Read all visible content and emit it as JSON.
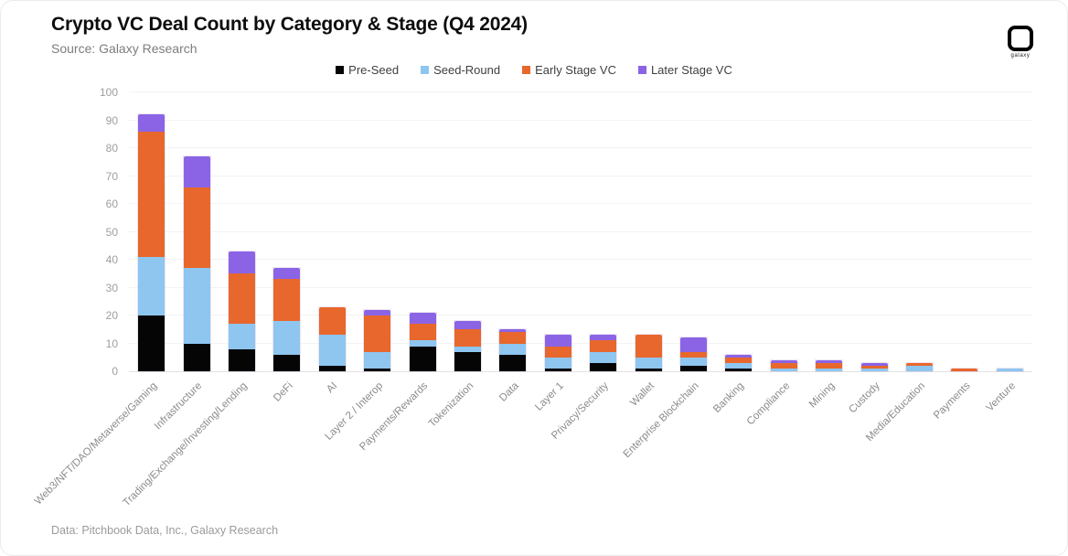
{
  "header": {
    "title": "Crypto VC Deal Count by Category & Stage (Q4 2024)",
    "source": "Source: Galaxy Research",
    "logo_text": "galaxy"
  },
  "footer": {
    "credit": "Data: Pitchbook Data, Inc., Galaxy Research"
  },
  "colors": {
    "pre_seed": "#050505",
    "seed_round": "#8EC6F0",
    "early_stage": "#E8672C",
    "later_stage": "#8B64E6"
  },
  "chart_data": {
    "type": "bar",
    "stacked": true,
    "title": "Crypto VC Deal Count by Category & Stage (Q4 2024)",
    "xlabel": "",
    "ylabel": "",
    "ylim": [
      0,
      100
    ],
    "grid": true,
    "legend_position": "top",
    "y_axis": {
      "min": 0,
      "max": 100,
      "tick_step": 10,
      "ticks": [
        0,
        10,
        20,
        30,
        40,
        50,
        60,
        70,
        80,
        90,
        100
      ]
    },
    "categories": [
      "Web3/NFT/DAO/Metaverse/Gaming",
      "Infrastructure",
      "Trading/Exchange/Investing/Lending",
      "DeFi",
      "AI",
      "Layer 2 / Interop",
      "Payments/Rewards",
      "Tokenization",
      "Data",
      "Layer 1",
      "Privacy/Security",
      "Wallet",
      "Enterprise Blockchain",
      "Banking",
      "Compliance",
      "Mining",
      "Custody",
      "Media/Education",
      "Payments",
      "Venture"
    ],
    "series": [
      {
        "name": "Pre-Seed",
        "color": "#050505",
        "values": [
          20,
          10,
          8,
          6,
          2,
          1,
          9,
          7,
          6,
          1,
          3,
          1,
          2,
          1,
          0,
          0,
          0,
          0,
          0,
          0
        ]
      },
      {
        "name": "Seed-Round",
        "color": "#8EC6F0",
        "values": [
          21,
          27,
          9,
          12,
          11,
          6,
          2,
          2,
          4,
          4,
          4,
          4,
          3,
          2,
          1,
          1,
          1,
          2,
          0,
          1
        ]
      },
      {
        "name": "Early Stage VC",
        "color": "#E8672C",
        "values": [
          45,
          29,
          18,
          15,
          10,
          13,
          6,
          6,
          4,
          4,
          4,
          8,
          2,
          2,
          2,
          2,
          1,
          1,
          1,
          0
        ]
      },
      {
        "name": "Later Stage VC",
        "color": "#8B64E6",
        "values": [
          6,
          11,
          8,
          4,
          0,
          2,
          4,
          3,
          1,
          4,
          2,
          0,
          5,
          1,
          1,
          1,
          1,
          0,
          0,
          0
        ]
      }
    ],
    "totals": [
      92,
      77,
      43,
      37,
      23,
      22,
      21,
      18,
      15,
      13,
      13,
      13,
      12,
      6,
      4,
      4,
      3,
      3,
      1,
      1
    ]
  }
}
